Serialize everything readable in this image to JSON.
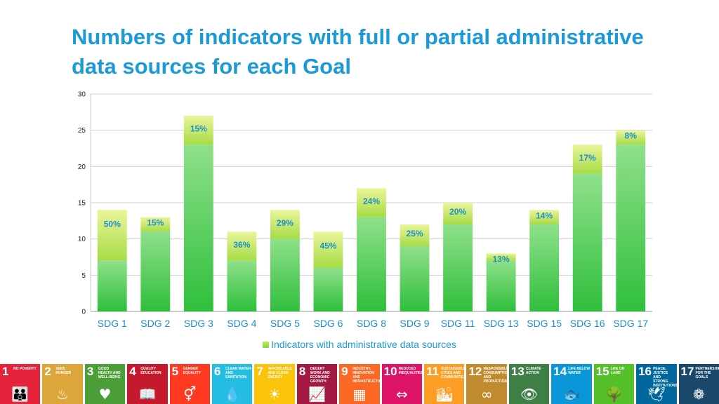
{
  "title": "Numbers of indicators with full or partial administrative data sources for each Goal",
  "chart_data": {
    "type": "bar",
    "title": "Numbers of indicators with full or partial administrative data sources for each Goal",
    "xlabel": "",
    "ylabel": "",
    "ylim": [
      0,
      30
    ],
    "yticks": [
      "0",
      "5",
      "10",
      "15",
      "20",
      "25",
      "30"
    ],
    "grid": true,
    "legend_position": "bottom",
    "categories": [
      "SDG 1",
      "SDG 2",
      "SDG 3",
      "SDG 4",
      "SDG 5",
      "SDG 6",
      "SDG 8",
      "SDG 9",
      "SDG 11",
      "SDG 13",
      "SDG 15",
      "SDG 16",
      "SDG 17"
    ],
    "series": [
      {
        "name": "Indicators with administrative data sources",
        "values": [
          7,
          11,
          23,
          7,
          10,
          6,
          13,
          9,
          12,
          7,
          12,
          19,
          23
        ]
      },
      {
        "values": [
          14,
          13,
          27,
          11,
          14,
          11,
          17,
          12,
          15,
          8,
          14,
          23,
          25
        ]
      }
    ],
    "data_labels": [
      "50%",
      "15%",
      "15%",
      "36%",
      "29%",
      "45%",
      "24%",
      "25%",
      "20%",
      "13%",
      "14%",
      "17%",
      "8%"
    ],
    "colors": {
      "main_top": "#8fe08a",
      "main_bottom": "#2fbf3c",
      "cap_top": "#eaf59a",
      "cap_bottom": "#a6dc46",
      "label": "#1a8fd0",
      "axis_text": "#222222"
    }
  },
  "legend": {
    "label": "Indicators with administrative data sources"
  },
  "sdg_tiles": [
    {
      "number": "1",
      "name": "No Poverty",
      "color": "#e5243b",
      "icon": "family-icon",
      "glyph": "👪"
    },
    {
      "number": "2",
      "name": "Zero Hunger",
      "color": "#dda63a",
      "icon": "bowl-icon",
      "glyph": "♨"
    },
    {
      "number": "3",
      "name": "Good Health and Well-Being",
      "color": "#4c9f38",
      "icon": "heartbeat-icon",
      "glyph": "♥"
    },
    {
      "number": "4",
      "name": "Quality Education",
      "color": "#c5192d",
      "icon": "book-icon",
      "glyph": "📖"
    },
    {
      "number": "5",
      "name": "Gender Equality",
      "color": "#ff3a21",
      "icon": "gender-icon",
      "glyph": "⚥"
    },
    {
      "number": "6",
      "name": "Clean Water and Sanitation",
      "color": "#26bde2",
      "icon": "water-icon",
      "glyph": "💧"
    },
    {
      "number": "7",
      "name": "Affordable and Clean Energy",
      "color": "#fcc30b",
      "icon": "sun-icon",
      "glyph": "☀"
    },
    {
      "number": "8",
      "name": "Decent Work and Economic Growth",
      "color": "#a21942",
      "icon": "growth-chart-icon",
      "glyph": "📈"
    },
    {
      "number": "9",
      "name": "Industry, Innovation and Infrastructure",
      "color": "#fd6925",
      "icon": "cubes-icon",
      "glyph": "▦"
    },
    {
      "number": "10",
      "name": "Reduced Inequalities",
      "color": "#dd1367",
      "icon": "equality-icon",
      "glyph": "⇔"
    },
    {
      "number": "11",
      "name": "Sustainable Cities and Communities",
      "color": "#fd9d24",
      "icon": "buildings-icon",
      "glyph": "🏙"
    },
    {
      "number": "12",
      "name": "Responsible Consumption and Production",
      "color": "#bf8b2e",
      "icon": "infinity-icon",
      "glyph": "∞"
    },
    {
      "number": "13",
      "name": "Climate Action",
      "color": "#3f7e44",
      "icon": "eye-icon",
      "glyph": "👁"
    },
    {
      "number": "14",
      "name": "Life Below Water",
      "color": "#0a97d9",
      "icon": "fish-icon",
      "glyph": "🐟"
    },
    {
      "number": "15",
      "name": "Life on Land",
      "color": "#56c02b",
      "icon": "tree-icon",
      "glyph": "🌳"
    },
    {
      "number": "16",
      "name": "Peace, Justice and Strong Institutions",
      "color": "#00689d",
      "icon": "dove-icon",
      "glyph": "🕊"
    },
    {
      "number": "17",
      "name": "Partnerships for the Goals",
      "color": "#19486a",
      "icon": "rings-icon",
      "glyph": "❁"
    }
  ]
}
